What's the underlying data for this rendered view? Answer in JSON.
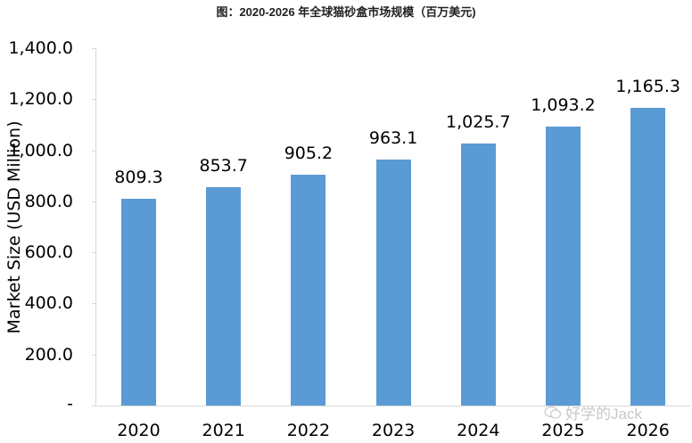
{
  "title": "图：2020-2026 年全球猫砂盒市场规模（百万美元)",
  "watermark": "好学的Jack",
  "chart_data": {
    "type": "bar",
    "title": "图：2020-2026 年全球猫砂盒市场规模（百万美元)",
    "xlabel": "",
    "ylabel": "Market Size (USD Million)",
    "categories": [
      "2020",
      "2021",
      "2022",
      "2023",
      "2024",
      "2025",
      "2026"
    ],
    "values": [
      809.3,
      853.7,
      905.2,
      963.1,
      1025.7,
      1093.2,
      1165.3
    ],
    "value_labels": [
      "809.3",
      "853.7",
      "905.2",
      "963.1",
      "1,025.7",
      "1,093.2",
      "1,165.3"
    ],
    "ylim": [
      0,
      1400
    ],
    "yticks": [
      "-",
      "200.0",
      "400.0",
      "600.0",
      "800.0",
      "1,000.0",
      "1,200.0",
      "1,400.0"
    ],
    "ytick_values": [
      0,
      200,
      400,
      600,
      800,
      1000,
      1200,
      1400
    ],
    "grid": false,
    "legend": null,
    "bar_color": "#5b9bd5"
  }
}
